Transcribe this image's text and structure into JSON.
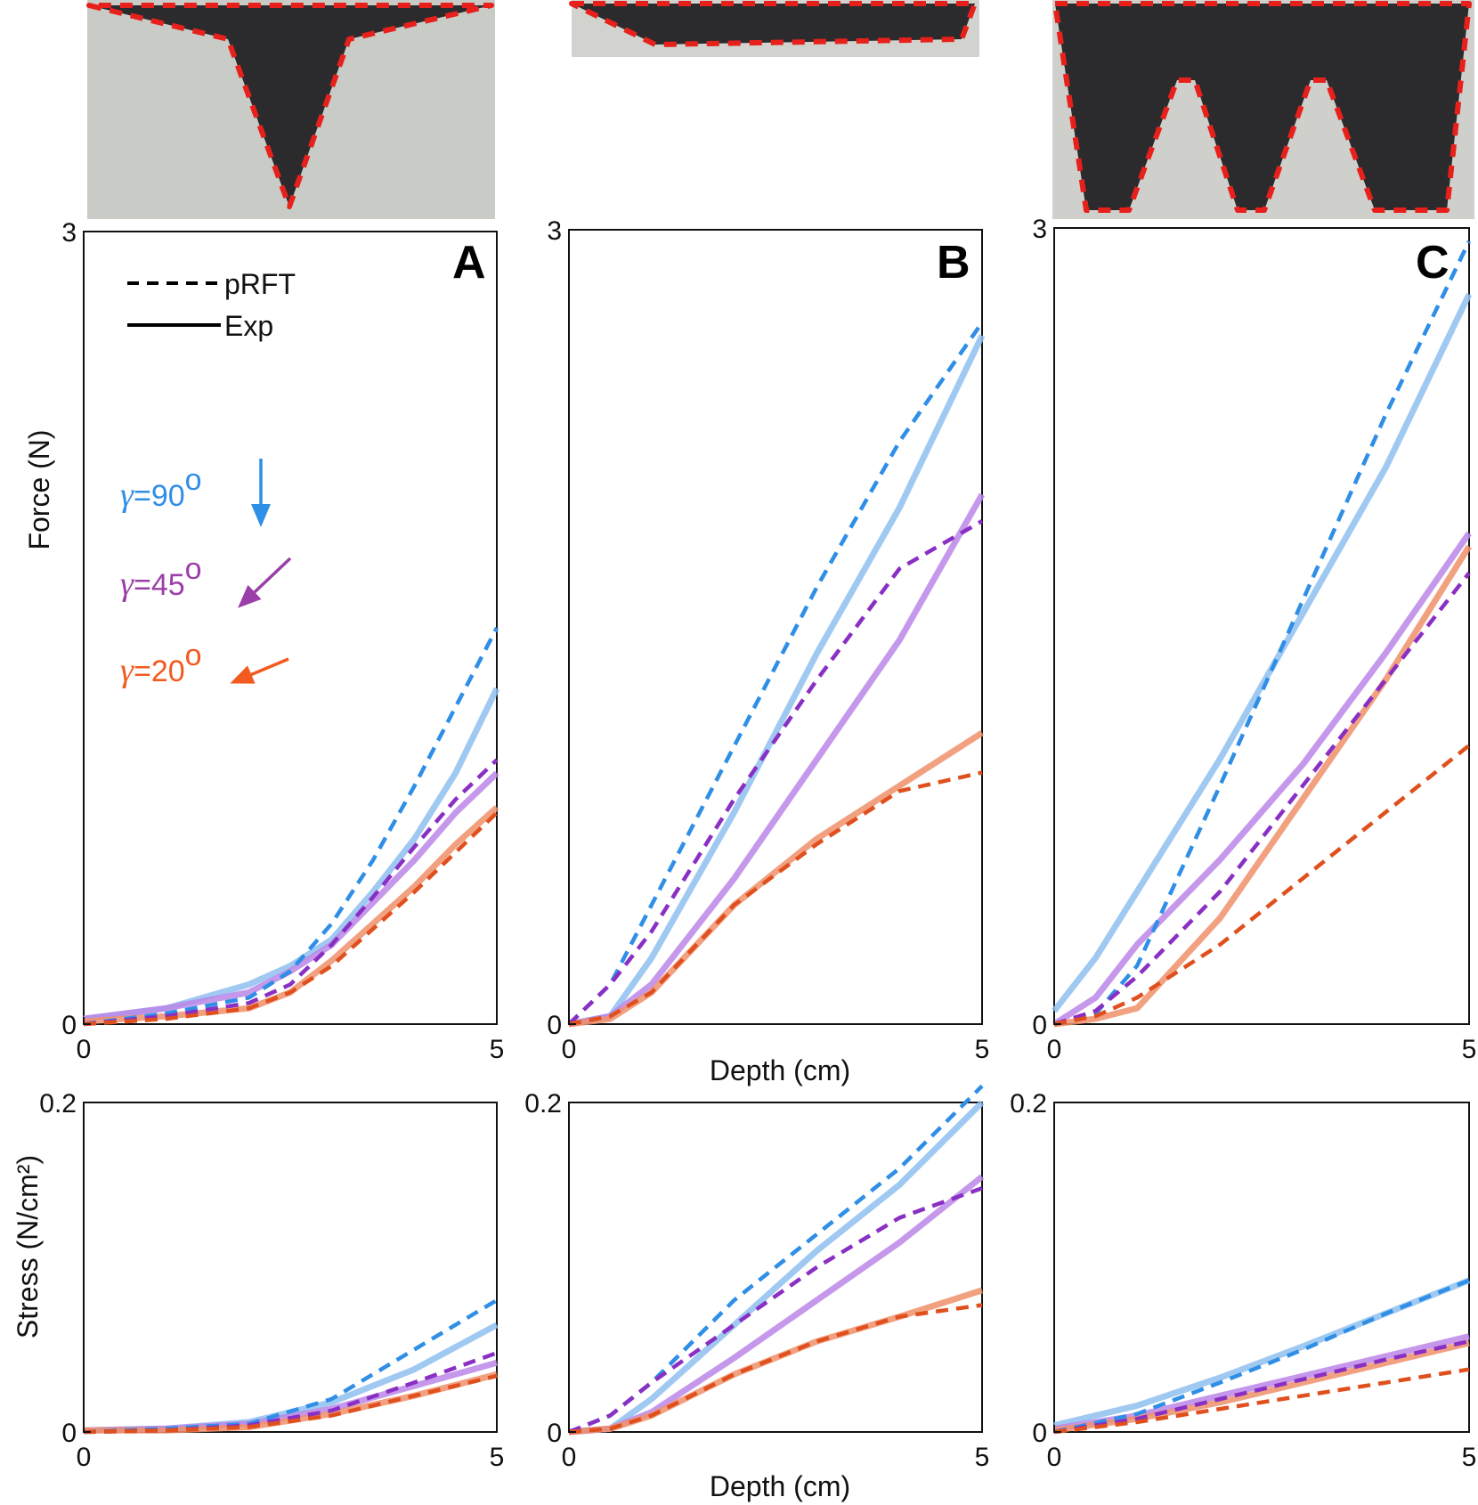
{
  "figure": {
    "y_title_top": "Force (N)",
    "y_title_bottom": "Stress (N/cm²)",
    "x_title": "Depth (cm)",
    "legend": {
      "dashed": "pRFT",
      "solid": "Exp"
    },
    "angles": [
      {
        "name": "γ=90°",
        "gamma": "γ",
        "value": "=90",
        "deg": "o",
        "color": "#2f8ee6"
      },
      {
        "name": "γ=45°",
        "gamma": "γ",
        "value": "=45",
        "deg": "o",
        "color": "#9b3fa8"
      },
      {
        "name": "γ=20°",
        "gamma": "γ",
        "value": "=20",
        "deg": "o",
        "color": "#f25a1f"
      }
    ],
    "colors": {
      "exp90": "#8fbff0",
      "rft90": "#2f8ee6",
      "exp45": "#bb86e8",
      "rft45": "#8a2fc4",
      "exp20": "#f0906a",
      "rft20": "#e0501e",
      "outline": "#e8201b",
      "shape": "#2b2b2d"
    }
  },
  "chart_data": [
    {
      "type": "line",
      "panel": "A",
      "row": "force",
      "xlim": [
        0,
        5
      ],
      "ylim": [
        0,
        3
      ],
      "xticks": [
        "0",
        "5"
      ],
      "yticks": [
        "0",
        "3"
      ],
      "x": [
        0,
        1,
        2,
        2.5,
        3,
        3.5,
        4,
        4.5,
        5
      ],
      "series": [
        {
          "name": "γ=90° pRFT",
          "values": [
            0,
            0.04,
            0.1,
            0.2,
            0.38,
            0.62,
            0.9,
            1.2,
            1.5
          ]
        },
        {
          "name": "γ=90° Exp",
          "values": [
            0.02,
            0.06,
            0.15,
            0.22,
            0.32,
            0.5,
            0.7,
            0.95,
            1.27
          ]
        },
        {
          "name": "γ=45° pRFT",
          "values": [
            0,
            0.03,
            0.08,
            0.15,
            0.3,
            0.48,
            0.67,
            0.85,
            1.0
          ]
        },
        {
          "name": "γ=45° Exp",
          "values": [
            0.02,
            0.06,
            0.12,
            0.2,
            0.3,
            0.46,
            0.62,
            0.8,
            0.95
          ]
        },
        {
          "name": "γ=20° pRFT",
          "values": [
            0,
            0.02,
            0.06,
            0.12,
            0.22,
            0.36,
            0.5,
            0.65,
            0.8
          ]
        },
        {
          "name": "γ=20° Exp",
          "values": [
            0.01,
            0.03,
            0.06,
            0.12,
            0.24,
            0.38,
            0.52,
            0.68,
            0.82
          ]
        }
      ]
    },
    {
      "type": "line",
      "panel": "B",
      "row": "force",
      "xlim": [
        0,
        5
      ],
      "ylim": [
        0,
        3
      ],
      "xticks": [
        "0",
        "5"
      ],
      "yticks": [
        "0",
        "3"
      ],
      "x": [
        0,
        0.5,
        1,
        2,
        3,
        4,
        5
      ],
      "series": [
        {
          "name": "γ=90° pRFT",
          "values": [
            0,
            0.15,
            0.45,
            1.05,
            1.65,
            2.2,
            2.65
          ]
        },
        {
          "name": "γ=90° Exp",
          "values": [
            0,
            0.03,
            0.25,
            0.8,
            1.4,
            1.95,
            2.6
          ]
        },
        {
          "name": "γ=45° pRFT",
          "values": [
            0,
            0.15,
            0.35,
            0.85,
            1.3,
            1.72,
            1.9
          ]
        },
        {
          "name": "γ=45° Exp",
          "values": [
            0,
            0.03,
            0.15,
            0.55,
            1.0,
            1.45,
            2.0
          ]
        },
        {
          "name": "γ=20° pRFT",
          "values": [
            0,
            0.03,
            0.12,
            0.45,
            0.68,
            0.88,
            0.95
          ]
        },
        {
          "name": "γ=20° Exp",
          "values": [
            0,
            0.02,
            0.12,
            0.45,
            0.7,
            0.9,
            1.1
          ]
        }
      ]
    },
    {
      "type": "line",
      "panel": "C",
      "row": "force",
      "xlim": [
        0,
        5
      ],
      "ylim": [
        0,
        3
      ],
      "xticks": [
        "0",
        "5"
      ],
      "yticks": [
        "0",
        "3"
      ],
      "x": [
        0,
        0.5,
        1,
        2,
        3,
        4,
        5
      ],
      "series": [
        {
          "name": "γ=90° pRFT",
          "values": [
            0,
            0.04,
            0.22,
            0.9,
            1.6,
            2.3,
            2.95
          ]
        },
        {
          "name": "γ=90° Exp",
          "values": [
            0.05,
            0.25,
            0.5,
            1.0,
            1.55,
            2.1,
            2.75
          ]
        },
        {
          "name": "γ=45° pRFT",
          "values": [
            0,
            0.05,
            0.18,
            0.5,
            0.9,
            1.3,
            1.7
          ]
        },
        {
          "name": "γ=45° Exp",
          "values": [
            0,
            0.1,
            0.3,
            0.62,
            0.98,
            1.4,
            1.85
          ]
        },
        {
          "name": "γ=20° pRFT",
          "values": [
            0,
            0.03,
            0.1,
            0.3,
            0.55,
            0.8,
            1.05
          ]
        },
        {
          "name": "γ=20° Exp",
          "values": [
            0,
            0.02,
            0.06,
            0.4,
            0.85,
            1.3,
            1.8
          ]
        }
      ]
    },
    {
      "type": "line",
      "panel": "A",
      "row": "stress",
      "xlim": [
        0,
        5
      ],
      "ylim": [
        0,
        0.2
      ],
      "xticks": [
        "0",
        "5"
      ],
      "yticks": [
        "0",
        "0.2"
      ],
      "x": [
        0,
        1,
        2,
        3,
        4,
        5
      ],
      "series": [
        {
          "name": "γ=90° pRFT",
          "values": [
            0,
            0.002,
            0.005,
            0.02,
            0.05,
            0.08
          ]
        },
        {
          "name": "γ=90° Exp",
          "values": [
            0.001,
            0.002,
            0.006,
            0.018,
            0.038,
            0.065
          ]
        },
        {
          "name": "γ=45° pRFT",
          "values": [
            0,
            0.001,
            0.004,
            0.013,
            0.03,
            0.048
          ]
        },
        {
          "name": "γ=45° Exp",
          "values": [
            0.001,
            0.002,
            0.005,
            0.014,
            0.028,
            0.042
          ]
        },
        {
          "name": "γ=20° pRFT",
          "values": [
            0,
            0.001,
            0.003,
            0.01,
            0.022,
            0.034
          ]
        },
        {
          "name": "γ=20° Exp",
          "values": [
            0.001,
            0.001,
            0.003,
            0.011,
            0.022,
            0.035
          ]
        }
      ]
    },
    {
      "type": "line",
      "panel": "B",
      "row": "stress",
      "xlim": [
        0,
        5
      ],
      "ylim": [
        0,
        0.2
      ],
      "xticks": [
        "0",
        "5"
      ],
      "yticks": [
        "0",
        "0.2"
      ],
      "x": [
        0,
        0.5,
        1,
        2,
        3,
        4,
        5
      ],
      "series": [
        {
          "name": "γ=90° pRFT",
          "values": [
            0,
            0.01,
            0.03,
            0.08,
            0.12,
            0.16,
            0.21
          ]
        },
        {
          "name": "γ=90° Exp",
          "values": [
            0,
            0.002,
            0.02,
            0.065,
            0.11,
            0.15,
            0.2
          ]
        },
        {
          "name": "γ=45° pRFT",
          "values": [
            0,
            0.01,
            0.03,
            0.065,
            0.1,
            0.13,
            0.148
          ]
        },
        {
          "name": "γ=45° Exp",
          "values": [
            0,
            0.002,
            0.012,
            0.045,
            0.08,
            0.115,
            0.155
          ]
        },
        {
          "name": "γ=20° pRFT",
          "values": [
            0,
            0.002,
            0.01,
            0.035,
            0.055,
            0.07,
            0.077
          ]
        },
        {
          "name": "γ=20° Exp",
          "values": [
            0,
            0.002,
            0.01,
            0.035,
            0.055,
            0.07,
            0.086
          ]
        }
      ]
    },
    {
      "type": "line",
      "panel": "C",
      "row": "stress",
      "xlim": [
        0,
        5
      ],
      "ylim": [
        0,
        0.2
      ],
      "xticks": [
        "0",
        "5"
      ],
      "yticks": [
        "0",
        "0.2"
      ],
      "x": [
        0,
        1,
        2,
        3,
        4,
        5
      ],
      "series": [
        {
          "name": "γ=90° pRFT",
          "values": [
            0,
            0.011,
            0.03,
            0.05,
            0.072,
            0.092
          ]
        },
        {
          "name": "γ=90° Exp",
          "values": [
            0.004,
            0.016,
            0.033,
            0.052,
            0.072,
            0.092
          ]
        },
        {
          "name": "γ=45° pRFT",
          "values": [
            0,
            0.008,
            0.02,
            0.032,
            0.044,
            0.055
          ]
        },
        {
          "name": "γ=45° Exp",
          "values": [
            0.002,
            0.01,
            0.022,
            0.034,
            0.046,
            0.058
          ]
        },
        {
          "name": "γ=20° pRFT",
          "values": [
            0,
            0.006,
            0.014,
            0.022,
            0.03,
            0.038
          ]
        },
        {
          "name": "γ=20° Exp",
          "values": [
            0.001,
            0.008,
            0.018,
            0.03,
            0.042,
            0.054
          ]
        }
      ]
    }
  ],
  "panels": [
    {
      "letter": "A"
    },
    {
      "letter": "B"
    },
    {
      "letter": "C"
    }
  ]
}
